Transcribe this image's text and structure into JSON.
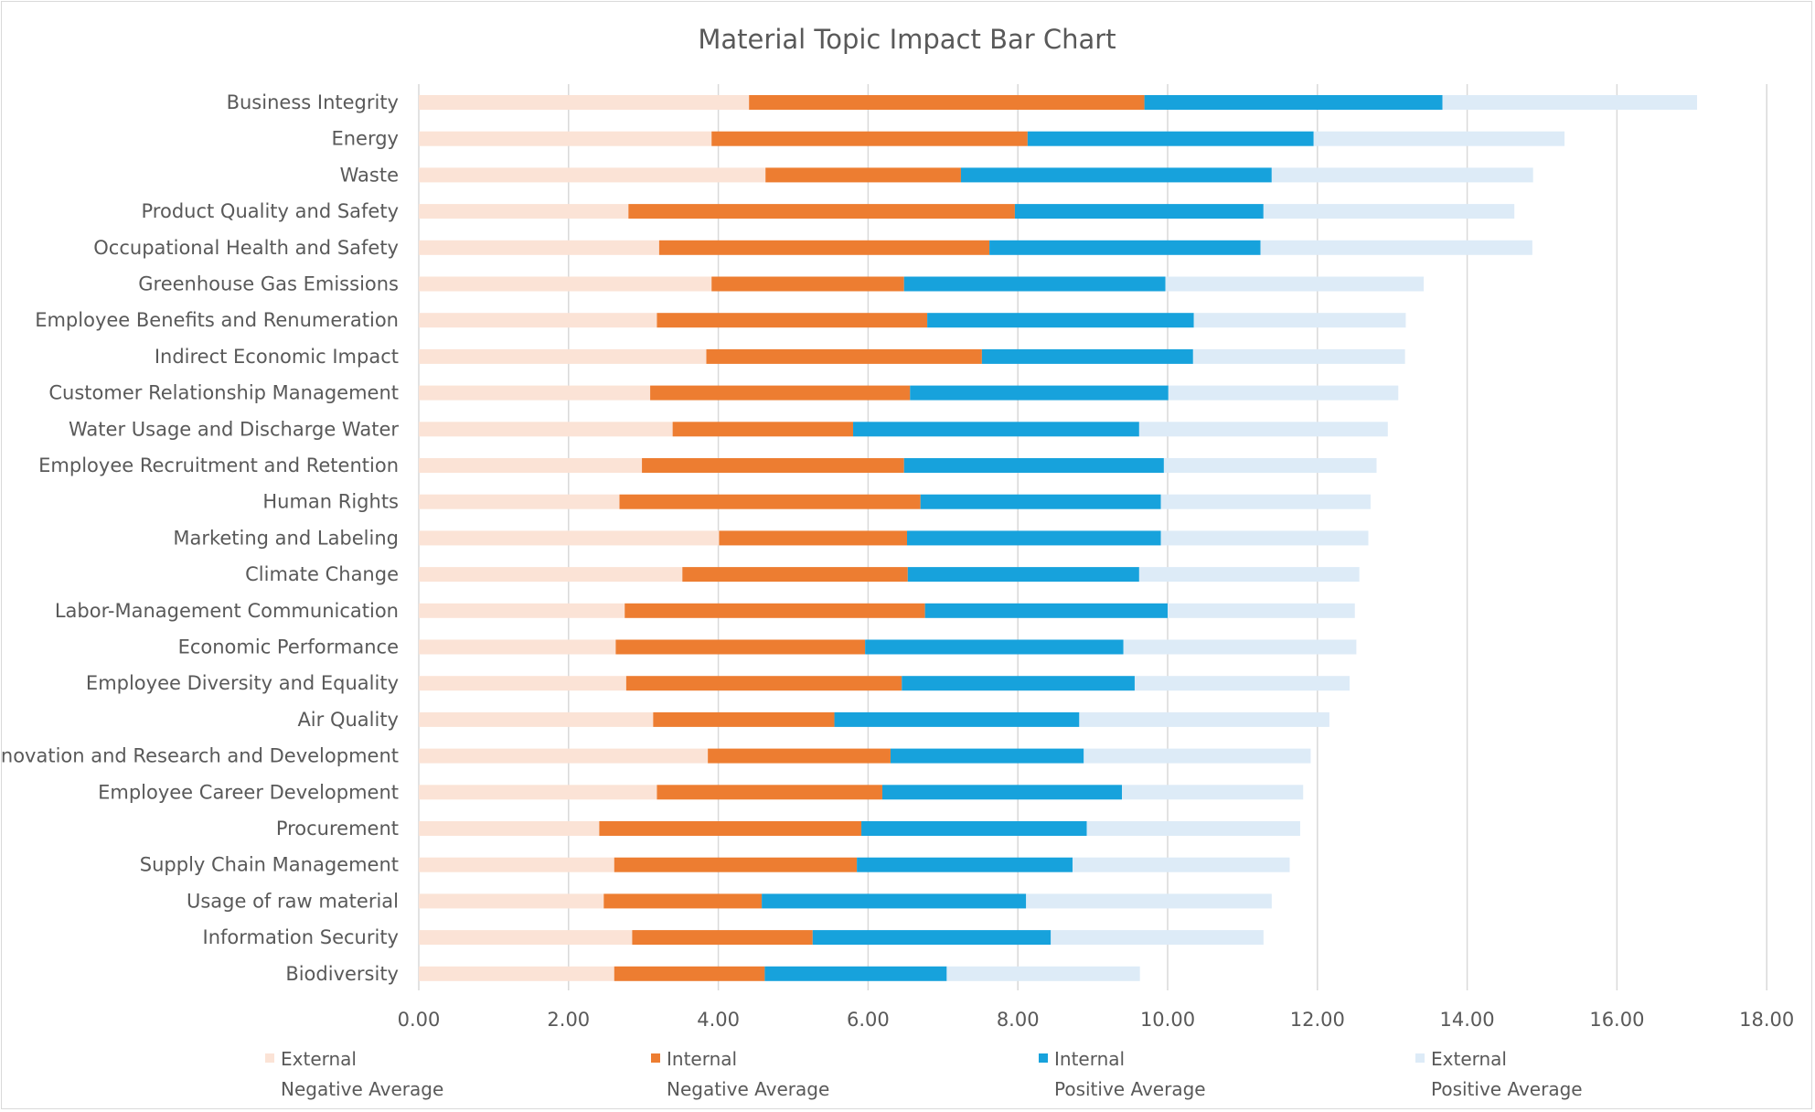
{
  "chart_data": {
    "type": "bar",
    "orientation": "horizontal",
    "stacked": true,
    "title": "Material Topic Impact Bar Chart",
    "xlim": [
      0,
      18
    ],
    "ticks": [
      "0.00",
      "2.00",
      "4.00",
      "6.00",
      "8.00",
      "10.00",
      "12.00",
      "14.00",
      "16.00",
      "18.00"
    ],
    "grid": true,
    "legend_position": "bottom",
    "categories": [
      "Business Integrity",
      "Energy",
      "Waste",
      "Product Quality and Safety",
      "Occupational Health and Safety",
      "Greenhouse Gas Emissions",
      "Employee Benefits and Renumeration",
      "Indirect Economic Impact",
      "Customer Relationship Management",
      "Water Usage and Discharge Water",
      "Employee Recruitment and Retention",
      "Human Rights",
      "Marketing and Labeling",
      "Climate Change",
      "Labor-Management Communication",
      "Economic Performance",
      "Employee Diversity and Equality",
      "Air Quality",
      "Innovation and Research and Development",
      "Employee Career Development",
      "Procurement",
      "Supply Chain Management",
      "Usage of raw material",
      "Information Security",
      "Biodiversity"
    ],
    "series": [
      {
        "name": "External Negative Average",
        "legend_line1": "External",
        "legend_line2": "Negative Average",
        "color": "#fbe3d6",
        "values": [
          4.41,
          3.91,
          4.63,
          2.8,
          3.21,
          3.91,
          3.18,
          3.84,
          3.09,
          3.39,
          2.98,
          2.68,
          4.01,
          3.52,
          2.75,
          2.63,
          2.77,
          3.13,
          3.86,
          3.18,
          2.41,
          2.61,
          2.47,
          2.85,
          2.61
        ]
      },
      {
        "name": "Internal Negative Average",
        "legend_line1": "Internal",
        "legend_line2": "Negative Average",
        "color": "#ed7d31",
        "values": [
          5.28,
          4.22,
          2.61,
          5.16,
          4.41,
          2.57,
          3.61,
          3.68,
          3.47,
          2.41,
          3.5,
          4.02,
          2.51,
          3.01,
          4.01,
          3.33,
          3.68,
          2.42,
          2.44,
          3.01,
          3.5,
          3.24,
          2.11,
          2.41,
          2.01
        ]
      },
      {
        "name": "Internal Positive Average",
        "legend_line1": "Internal",
        "legend_line2": "Positive Average",
        "color": "#17a2dc",
        "values": [
          3.98,
          3.82,
          4.15,
          3.32,
          3.62,
          3.49,
          3.56,
          2.82,
          3.45,
          3.82,
          3.47,
          3.21,
          3.39,
          3.09,
          3.24,
          3.45,
          3.11,
          3.27,
          2.58,
          3.2,
          3.01,
          2.88,
          3.53,
          3.18,
          2.43
        ]
      },
      {
        "name": "External Positive Average",
        "legend_line1": "External",
        "legend_line2": "Positive Average",
        "color": "#ddebf7",
        "values": [
          3.4,
          3.35,
          3.49,
          3.35,
          3.63,
          3.45,
          2.83,
          2.83,
          3.07,
          3.32,
          2.84,
          2.8,
          2.77,
          2.94,
          2.5,
          3.11,
          2.87,
          3.34,
          3.03,
          2.42,
          2.85,
          2.9,
          3.28,
          2.84,
          2.58
        ]
      }
    ]
  }
}
